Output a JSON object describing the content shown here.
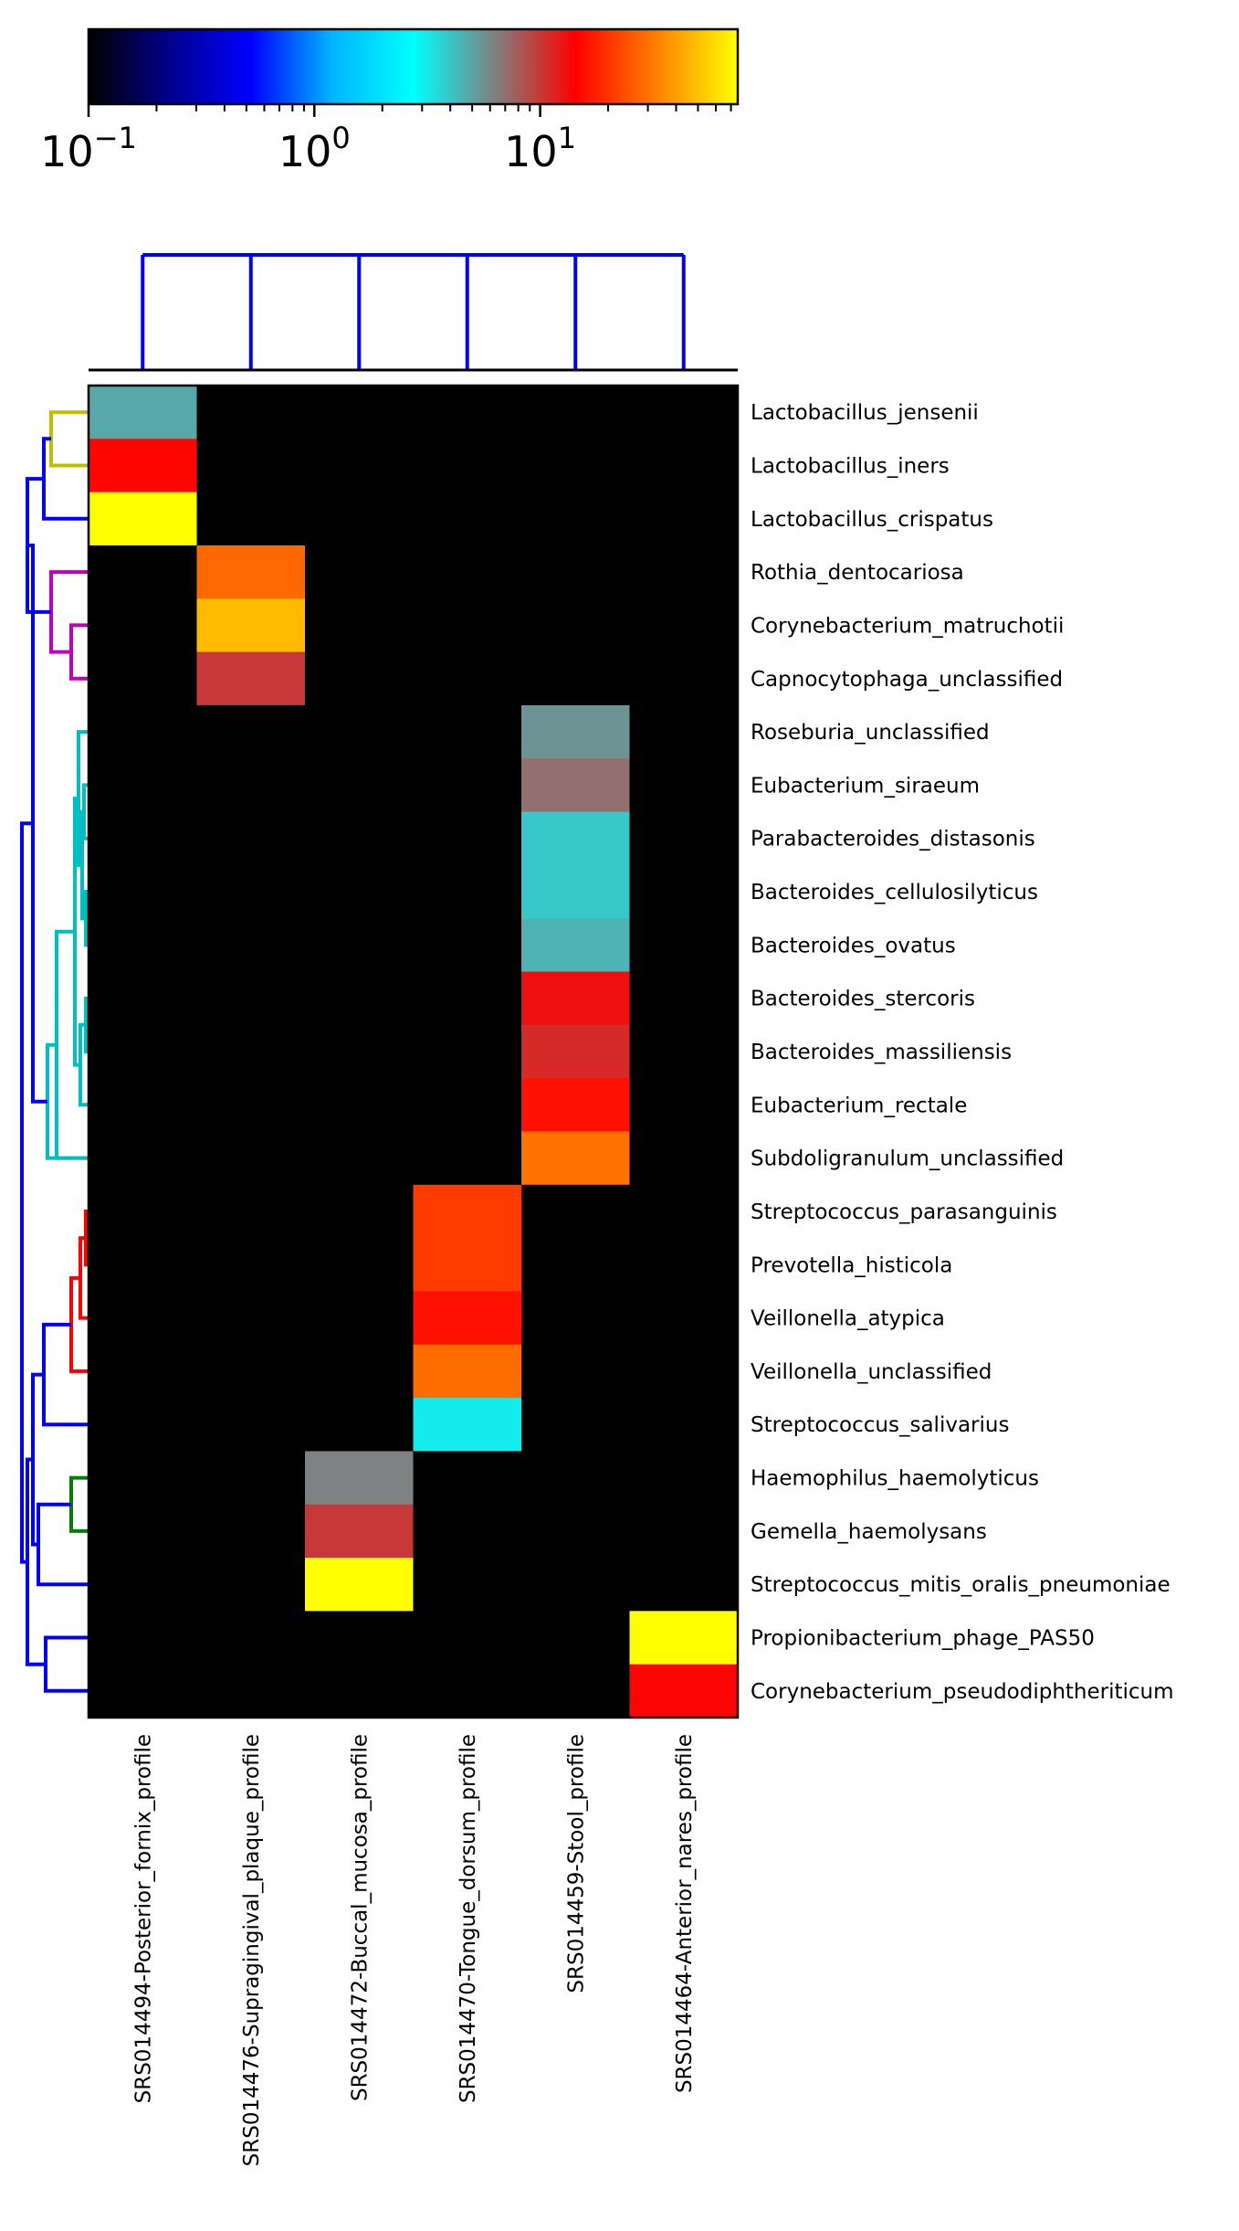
{
  "chart_data": {
    "type": "heatmap",
    "colorbar": {
      "scale": "log",
      "range": [
        0.1,
        75
      ],
      "tick_labels": [
        {
          "base": "10",
          "exp": "−1",
          "value": 0.1
        },
        {
          "base": "10",
          "exp": "0",
          "value": 1
        },
        {
          "base": "10",
          "exp": "1",
          "value": 10
        }
      ],
      "colormap_stops": [
        "#000000",
        "#00008c",
        "#0000ff",
        "#00b4ff",
        "#00ffff",
        "#808080",
        "#ff0000",
        "#ff8000",
        "#ffff00"
      ]
    },
    "columns": [
      "SRS014494-Posterior_fornix_profile",
      "SRS014476-Supragingival_plaque_profile",
      "SRS014472-Buccal_mucosa_profile",
      "SRS014470-Tongue_dorsum_profile",
      "SRS014459-Stool_profile",
      "SRS014464-Anterior_nares_profile"
    ],
    "rows": [
      "Lactobacillus_jensenii",
      "Lactobacillus_iners",
      "Lactobacillus_crispatus",
      "Rothia_dentocariosa",
      "Corynebacterium_matruchotii",
      "Capnocytophaga_unclassified",
      "Roseburia_unclassified",
      "Eubacterium_siraeum",
      "Parabacteroides_distasonis",
      "Bacteroides_cellulosilyticus",
      "Bacteroides_ovatus",
      "Bacteroides_stercoris",
      "Bacteroides_massiliensis",
      "Eubacterium_rectale",
      "Subdoligranulum_unclassified",
      "Streptococcus_parasanguinis",
      "Prevotella_histicola",
      "Veillonella_atypica",
      "Veillonella_unclassified",
      "Streptococcus_salivarius",
      "Haemophilus_haemolyticus",
      "Gemella_haemolysans",
      "Streptococcus_mitis_oralis_pneumoniae",
      "Propionibacterium_phage_PAS50",
      "Corynebacterium_pseudodiphtheriticum"
    ],
    "values": [
      [
        4.8,
        0,
        0,
        0,
        0,
        0
      ],
      [
        15,
        0,
        0,
        0,
        0,
        0
      ],
      [
        75,
        0,
        0,
        0,
        0,
        0
      ],
      [
        0,
        28,
        0,
        0,
        0,
        0
      ],
      [
        0,
        48,
        0,
        0,
        0,
        0
      ],
      [
        0,
        10,
        0,
        0,
        0,
        0
      ],
      [
        0,
        0,
        0,
        0,
        5.5,
        0
      ],
      [
        0,
        0,
        0,
        0,
        7,
        0
      ],
      [
        0,
        0,
        0,
        0,
        3.9,
        0
      ],
      [
        0,
        0,
        0,
        0,
        3.9,
        0
      ],
      [
        0,
        0,
        0,
        0,
        4.5,
        0
      ],
      [
        0,
        0,
        0,
        0,
        13,
        0
      ],
      [
        0,
        0,
        0,
        0,
        11,
        0
      ],
      [
        0,
        0,
        0,
        0,
        16,
        0
      ],
      [
        0,
        0,
        0,
        0,
        30,
        0
      ],
      [
        0,
        0,
        0,
        21,
        0,
        0
      ],
      [
        0,
        0,
        0,
        21,
        0,
        0
      ],
      [
        0,
        0,
        0,
        16,
        0,
        0
      ],
      [
        0,
        0,
        0,
        29,
        0,
        0
      ],
      [
        0,
        0,
        0,
        3.1,
        0,
        0
      ],
      [
        0,
        0,
        6.2,
        0,
        0,
        0
      ],
      [
        0,
        0,
        10,
        0,
        0,
        0
      ],
      [
        0,
        0,
        75,
        0,
        0,
        0
      ],
      [
        0,
        0,
        0,
        0,
        0,
        75
      ],
      [
        0,
        0,
        0,
        0,
        0,
        14
      ]
    ],
    "row_dendrogram_colors": {
      "root": "#0000ff",
      "cluster_1": "#bfbf00",
      "cluster_2": "#bf00bf",
      "cluster_3": "#00bfbf",
      "cluster_4": "#ff0000",
      "cluster_5": "#008000"
    },
    "column_dendrogram_color": "#0000ff"
  }
}
